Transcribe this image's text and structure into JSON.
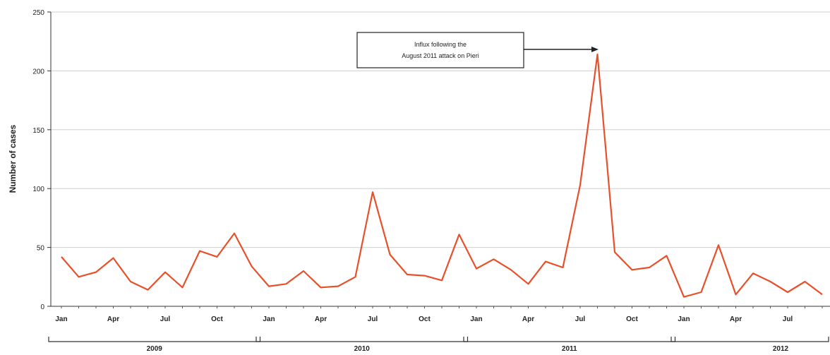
{
  "chart_data": {
    "type": "line",
    "title": "",
    "xlabel": "",
    "ylabel": "Number of cases",
    "ylim": [
      0,
      250
    ],
    "yticks": [
      0,
      50,
      100,
      150,
      200,
      250
    ],
    "grid": true,
    "month_labels": [
      "Jan",
      "Apr",
      "Jul",
      "Oct",
      "Jan",
      "Apr",
      "Jul",
      "Oct",
      "Jan",
      "Apr",
      "Jul",
      "Oct",
      "Jan",
      "Apr",
      "Jul"
    ],
    "years": [
      "2009",
      "2010",
      "2011",
      "2012"
    ],
    "series": [
      {
        "color": "#e8502a",
        "values": [
          42,
          25,
          29,
          41,
          21,
          14,
          29,
          16,
          47,
          42,
          62,
          34,
          17,
          19,
          30,
          16,
          17,
          25,
          97,
          44,
          27,
          26,
          22,
          61,
          32,
          40,
          31,
          19,
          38,
          33,
          103,
          214,
          46,
          31,
          33,
          43,
          8,
          12,
          52,
          10,
          28,
          21,
          12,
          21,
          10
        ]
      }
    ],
    "annotation": {
      "line1": "Influx following the",
      "line2": "August 2011 attack on Pieri",
      "target_index": 31
    }
  }
}
